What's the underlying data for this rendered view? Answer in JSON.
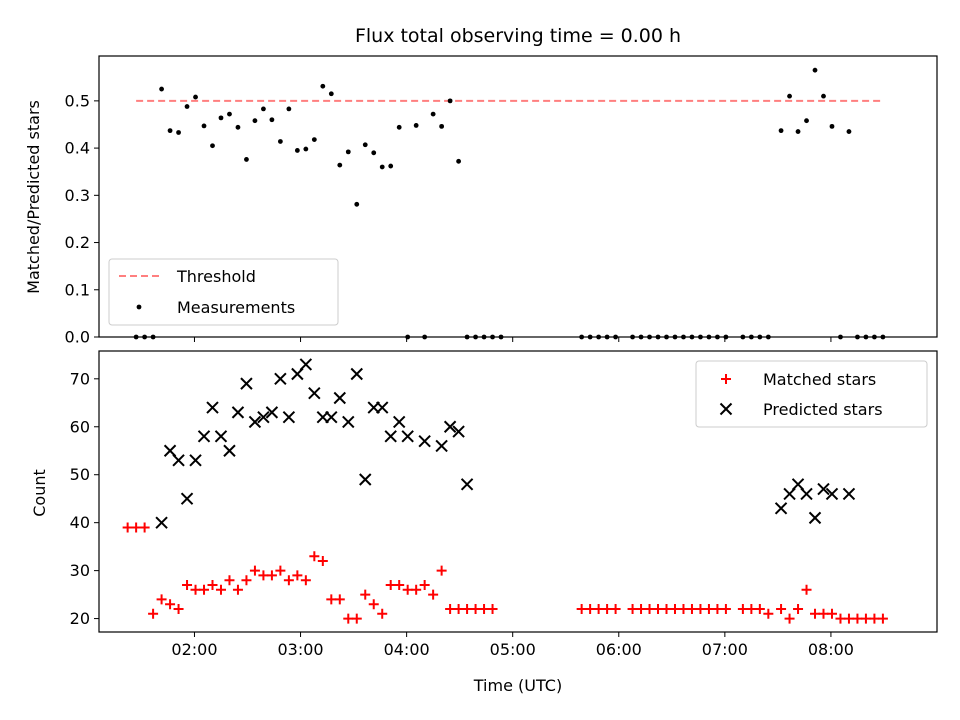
{
  "chart_data": [
    {
      "type": "scatter",
      "title": "Flux total observing time = 0.00 h",
      "xlabel": "",
      "ylabel": "Matched/Predicted stars",
      "xlim_hours": [
        1.1,
        9.0
      ],
      "ylim": [
        0,
        0.595
      ],
      "yticks": [
        0.0,
        0.1,
        0.2,
        0.3,
        0.4,
        0.5
      ],
      "ytick_labels": [
        "0.0",
        "0.1",
        "0.2",
        "0.3",
        "0.4",
        "0.5"
      ],
      "legend_position": "lower-left",
      "threshold": {
        "name": "Threshold",
        "value": 0.5,
        "x_range_hours": [
          1.45,
          8.5
        ],
        "color": "#ff7f7f",
        "style": "dashed"
      },
      "series": [
        {
          "name": "Measurements",
          "color": "#000000",
          "marker": "dot",
          "x_hours": [
            1.45,
            1.53,
            1.61,
            1.69,
            1.77,
            1.85,
            1.93,
            2.01,
            2.09,
            2.17,
            2.25,
            2.33,
            2.41,
            2.49,
            2.57,
            2.65,
            2.73,
            2.81,
            2.89,
            2.97,
            3.05,
            3.13,
            3.21,
            3.29,
            3.37,
            3.45,
            3.53,
            3.61,
            3.69,
            3.77,
            3.85,
            3.93,
            4.01,
            4.09,
            4.17,
            4.25,
            4.33,
            4.41,
            4.49,
            4.57,
            4.65,
            4.73,
            4.81,
            4.89,
            5.65,
            5.73,
            5.81,
            5.89,
            5.97,
            6.13,
            6.21,
            6.29,
            6.37,
            6.45,
            6.53,
            6.61,
            6.69,
            6.77,
            6.85,
            6.93,
            7.01,
            7.17,
            7.25,
            7.33,
            7.41,
            7.53,
            7.61,
            7.69,
            7.77,
            7.85,
            7.93,
            8.01,
            8.09,
            8.17,
            8.25,
            8.33,
            8.41,
            8.49
          ],
          "y": [
            0.0,
            0.0,
            0.0,
            0.525,
            0.437,
            0.433,
            0.488,
            0.508,
            0.447,
            0.405,
            0.464,
            0.472,
            0.444,
            0.376,
            0.458,
            0.483,
            0.46,
            0.414,
            0.483,
            0.395,
            0.398,
            0.418,
            0.531,
            0.515,
            0.364,
            0.392,
            0.281,
            0.407,
            0.39,
            0.36,
            0.362,
            0.444,
            0.0,
            0.448,
            0.0,
            0.472,
            0.446,
            0.5,
            0.372,
            0.0,
            0.0,
            0.0,
            0.0,
            0.0,
            0.0,
            0.0,
            0.0,
            0.0,
            0.0,
            0.0,
            0.0,
            0.0,
            0.0,
            0.0,
            0.0,
            0.0,
            0.0,
            0.0,
            0.0,
            0.0,
            0.0,
            0.0,
            0.0,
            0.0,
            0.0,
            0.437,
            0.51,
            0.435,
            0.458,
            0.565,
            0.51,
            0.446,
            0.0,
            0.435,
            0.0,
            0.0,
            0.0,
            0.0
          ]
        }
      ]
    },
    {
      "type": "scatter",
      "title": "",
      "xlabel": "Time (UTC)",
      "ylabel": "Count",
      "xlim_hours": [
        1.1,
        9.0
      ],
      "ylim": [
        17.2,
        75.8
      ],
      "yticks": [
        20,
        30,
        40,
        50,
        60,
        70
      ],
      "ytick_labels": [
        "20",
        "30",
        "40",
        "50",
        "60",
        "70"
      ],
      "xticks_hours": [
        2,
        3,
        4,
        5,
        6,
        7,
        8
      ],
      "xtick_labels": [
        "02:00",
        "03:00",
        "04:00",
        "05:00",
        "06:00",
        "07:00",
        "08:00"
      ],
      "legend_position": "top-right",
      "series": [
        {
          "name": "Matched stars",
          "color": "#ff0000",
          "marker": "plus",
          "x_hours": [
            1.37,
            1.45,
            1.53,
            1.61,
            1.69,
            1.77,
            1.85,
            1.93,
            2.01,
            2.09,
            2.17,
            2.25,
            2.33,
            2.41,
            2.49,
            2.57,
            2.65,
            2.73,
            2.81,
            2.89,
            2.97,
            3.05,
            3.13,
            3.21,
            3.29,
            3.37,
            3.45,
            3.53,
            3.61,
            3.69,
            3.77,
            3.85,
            3.93,
            4.01,
            4.09,
            4.17,
            4.25,
            4.33,
            4.41,
            4.49,
            4.57,
            4.65,
            4.73,
            4.81,
            5.65,
            5.73,
            5.81,
            5.89,
            5.97,
            6.13,
            6.21,
            6.29,
            6.37,
            6.45,
            6.53,
            6.61,
            6.69,
            6.77,
            6.85,
            6.93,
            7.01,
            7.17,
            7.25,
            7.33,
            7.41,
            7.53,
            7.61,
            7.69,
            7.77,
            7.85,
            7.93,
            8.01,
            8.09,
            8.17,
            8.25,
            8.33,
            8.41,
            8.49
          ],
          "y": [
            39,
            39,
            39,
            21,
            24,
            23,
            22,
            27,
            26,
            26,
            27,
            26,
            28,
            26,
            28,
            30,
            29,
            29,
            30,
            28,
            29,
            28,
            33,
            32,
            24,
            24,
            20,
            20,
            25,
            23,
            21,
            27,
            27,
            26,
            26,
            27,
            25,
            30,
            22,
            22,
            22,
            22,
            22,
            22,
            22,
            22,
            22,
            22,
            22,
            22,
            22,
            22,
            22,
            22,
            22,
            22,
            22,
            22,
            22,
            22,
            22,
            22,
            22,
            22,
            21,
            22,
            20,
            22,
            26,
            21,
            21,
            21,
            20,
            20,
            20,
            20,
            20,
            20
          ]
        },
        {
          "name": "Predicted stars",
          "color": "#000000",
          "marker": "x",
          "x_hours": [
            1.69,
            1.77,
            1.85,
            1.93,
            2.01,
            2.09,
            2.17,
            2.25,
            2.33,
            2.41,
            2.49,
            2.57,
            2.65,
            2.73,
            2.81,
            2.89,
            2.97,
            3.05,
            3.13,
            3.21,
            3.29,
            3.37,
            3.45,
            3.53,
            3.61,
            3.69,
            3.77,
            3.85,
            3.93,
            4.01,
            4.17,
            4.33,
            4.41,
            4.49,
            4.57,
            7.53,
            7.61,
            7.69,
            7.77,
            7.85,
            7.93,
            8.01,
            8.17
          ],
          "y": [
            40,
            55,
            53,
            45,
            53,
            58,
            64,
            58,
            55,
            63,
            69,
            61,
            62,
            63,
            70,
            62,
            71,
            73,
            67,
            62,
            62,
            66,
            61,
            71,
            49,
            64,
            64,
            58,
            61,
            58,
            57,
            56,
            60,
            59,
            48,
            43,
            46,
            48,
            46,
            41,
            47,
            46,
            46
          ]
        }
      ]
    }
  ]
}
